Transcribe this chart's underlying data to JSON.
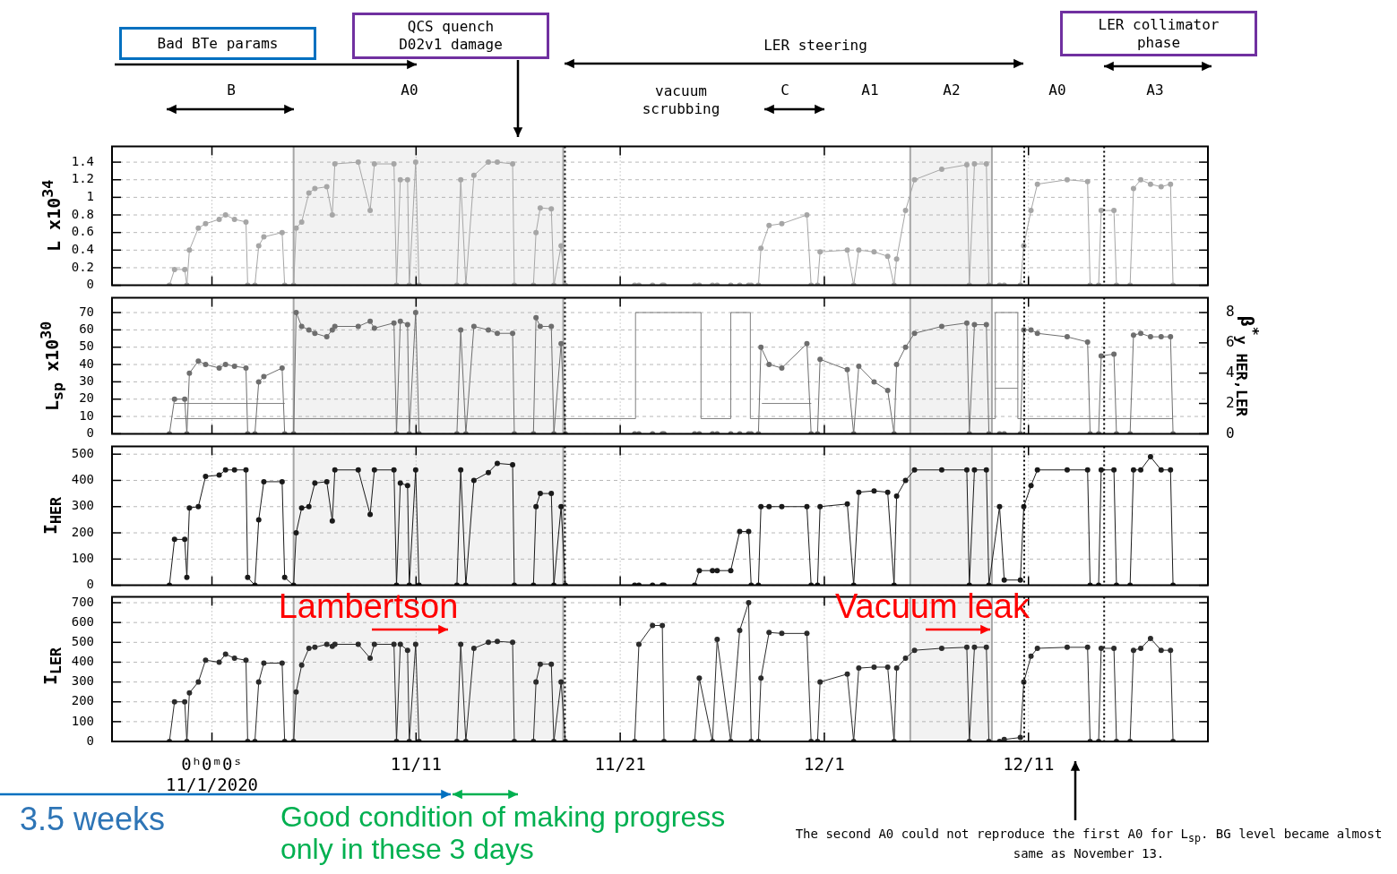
{
  "chart_data": [
    {
      "type": "line",
      "ylabel": "L x10$^{34}$",
      "x": [
        "2020-10-29T22:00",
        "2020-10-30T04:00",
        "2020-10-30T16:00",
        "2020-10-30T18:30",
        "2020-10-30T21:30",
        "2020-10-31T08:00",
        "2020-10-31T16:30",
        "2020-11-01T08:30",
        "2020-11-01T16:00",
        "2020-11-02T02:30",
        "2020-11-02T16:00",
        "2020-11-02T18:00",
        "2020-11-03T02:30",
        "2020-11-03T07:00",
        "2020-11-03T13:00",
        "2020-11-04T10:30",
        "2020-11-04T13:30",
        "2020-11-05T00:00",
        "2020-11-05T03:00",
        "2020-11-05T09:30",
        "2020-11-05T18:00",
        "2020-11-06T01:00",
        "2020-11-06T15:00",
        "2020-11-06T21:30",
        "2020-11-07T00:30",
        "2020-11-08T04:00",
        "2020-11-08T18:00",
        "2020-11-08T23:00",
        "2020-11-09T22:00",
        "2020-11-10T01:00",
        "2020-11-10T05:30",
        "2020-11-10T14:00",
        "2020-11-10T16:00",
        "2020-11-10T23:30",
        "2020-11-11T03:30",
        "2020-11-13T00:00",
        "2020-11-13T04:30",
        "2020-11-13T10:30",
        "2020-11-13T20:00",
        "2020-11-14T13:00",
        "2020-11-14T23:30",
        "2020-11-15T17:30",
        "2020-11-15T19:30",
        "2020-11-16T18:00",
        "2020-11-16T21:00",
        "2020-11-17T02:00",
        "2020-11-17T15:00",
        "2020-11-17T18:00",
        "2020-11-18T02:30",
        "2020-11-18T07:30",
        "2020-11-21T17:00",
        "2020-11-21T22:00",
        "2020-11-22T14:00",
        "2020-11-23T01:30",
        "2020-11-23T03:30",
        "2020-11-24T15:30",
        "2020-11-24T21:00",
        "2020-11-25T12:30",
        "2020-11-25T18:00",
        "2020-11-26T10:00",
        "2020-11-26T20:30",
        "2020-11-27T07:00",
        "2020-11-27T10:00",
        "2020-11-27T18:30",
        "2020-11-27T21:30",
        "2020-11-28T07:00",
        "2020-11-28T22:00",
        "2020-11-30T03:30",
        "2020-11-30T08:30",
        "2020-11-30T16:00",
        "2020-11-30T19:00",
        "2020-12-02T03:00",
        "2020-12-02T10:30",
        "2020-12-02T16:30",
        "2020-12-03T10:30",
        "2020-12-04T02:30",
        "2020-12-04T10:00",
        "2020-12-04T13:00",
        "2020-12-04T23:30",
        "2020-12-05T10:00",
        "2020-12-06T18:00",
        "2020-12-07T23:30",
        "2020-12-08T02:30",
        "2020-12-08T08:30",
        "2020-12-08T22:30",
        "2020-12-09T01:30",
        "2020-12-09T14:00",
        "2020-12-09T19:30",
        "2020-12-10T14:30",
        "2020-12-10T18:30",
        "2020-12-11T03:00",
        "2020-12-11T10:30",
        "2020-12-12T21:30",
        "2020-12-13T21:30",
        "2020-12-14T00:30",
        "2020-12-14T10:30",
        "2020-12-14T13:30",
        "2020-12-15T04:30",
        "2020-12-15T07:30",
        "2020-12-15T23:30",
        "2020-12-16T03:30",
        "2020-12-16T12:00",
        "2020-12-16T23:30",
        "2020-12-17T12:00",
        "2020-12-17T23:00",
        "2020-12-18T02:00"
      ],
      "series": [
        {
          "color": "#a6a6a6",
          "values": [
            0,
            0.18,
            0.18,
            0,
            0.4,
            0.65,
            0.7,
            0.75,
            0.8,
            0.75,
            0.72,
            0,
            0,
            0.45,
            0.55,
            0.6,
            0,
            0,
            0.65,
            0.72,
            1.05,
            1.1,
            1.12,
            0.8,
            1.38,
            1.4,
            0.85,
            1.38,
            1.38,
            0,
            1.2,
            1.2,
            0,
            1.4,
            0,
            0,
            1.2,
            0,
            1.25,
            1.4,
            1.4,
            1.38,
            0,
            0,
            0.6,
            0.88,
            0.87,
            0,
            0.45,
            0,
            0,
            0,
            0,
            0,
            0,
            0,
            0,
            0,
            0,
            0,
            0,
            0,
            0,
            0,
            0.42,
            0.68,
            0.7,
            0.8,
            0,
            0,
            0.38,
            0.4,
            0,
            0.4,
            0.38,
            0.33,
            0,
            0.3,
            0.85,
            1.2,
            1.32,
            1.37,
            0,
            1.38,
            1.38,
            0,
            0,
            0,
            0,
            0.45,
            0.85,
            1.15,
            1.2,
            1.18,
            0,
            0,
            0.85,
            0.85,
            0,
            0,
            1.1,
            1.2,
            1.15,
            1.12,
            1.15,
            0
          ]
        }
      ],
      "xlim": [
        "2020-10-27T02:30",
        "2020-12-19T19:00"
      ],
      "xticks": [
        {
          "value": "2020-11-01",
          "label": null
        },
        {
          "value": "2020-11-11",
          "label": null
        },
        {
          "value": "2020-11-21",
          "label": null
        },
        {
          "value": "2020-12-01",
          "label": null
        },
        {
          "value": "2020-12-11",
          "label": null
        }
      ],
      "ylim": [
        0,
        1.58
      ],
      "yticks": [
        0,
        0.2,
        0.4,
        0.6,
        0.8,
        1,
        1.2,
        1.4
      ],
      "grid": true,
      "marker": "circle",
      "tick_labels": "y",
      "ref_lines": [
        {
          "axis": "x",
          "value": "2020-11-18T07:00",
          "line_style": "dotted"
        },
        {
          "axis": "x",
          "value": "2020-12-10T19:00",
          "line_style": "dotted"
        },
        {
          "axis": "x",
          "value": "2020-12-14T17:00",
          "line_style": "dotted"
        }
      ],
      "bands": [
        {
          "axis": "x",
          "from": "2020-11-05",
          "to": "2020-11-18T05:00",
          "color": "#a6a6a6"
        },
        {
          "axis": "x",
          "from": "2020-12-05T05:00",
          "to": "2020-12-09T05:00",
          "color": "#a6a6a6"
        }
      ],
      "annotations": [
        "Bad BTe params",
        "QCS quench D02v1 damage",
        "LER steering",
        "LER collimator phase",
        "B",
        "A0",
        "vacuum scrubbing",
        "C",
        "A1",
        "A2",
        "A0",
        "A3"
      ]
    },
    {
      "type": "line",
      "ylabel": "L$_{sp}$ x10$^{30}$",
      "y2label": "β$^{*}$$_{y HER,LER}$",
      "x": [
        "2020-10-29T22:00",
        "2020-10-30T04:00",
        "2020-10-30T16:00",
        "2020-10-30T18:30",
        "2020-10-30T21:30",
        "2020-10-31T08:00",
        "2020-10-31T16:30",
        "2020-11-01T08:30",
        "2020-11-01T16:00",
        "2020-11-02T02:30",
        "2020-11-02T16:00",
        "2020-11-02T18:00",
        "2020-11-03T02:30",
        "2020-11-03T07:00",
        "2020-11-03T13:00",
        "2020-11-04T10:30",
        "2020-11-04T13:30",
        "2020-11-05T00:00",
        "2020-11-05T03:00",
        "2020-11-05T09:30",
        "2020-11-05T18:00",
        "2020-11-06T01:00",
        "2020-11-06T15:00",
        "2020-11-06T21:30",
        "2020-11-07T00:30",
        "2020-11-08T04:00",
        "2020-11-08T18:00",
        "2020-11-08T23:00",
        "2020-11-09T22:00",
        "2020-11-10T01:00",
        "2020-11-10T05:30",
        "2020-11-10T14:00",
        "2020-11-10T16:00",
        "2020-11-10T23:30",
        "2020-11-11T03:30",
        "2020-11-13T00:00",
        "2020-11-13T04:30",
        "2020-11-13T10:30",
        "2020-11-13T20:00",
        "2020-11-14T13:00",
        "2020-11-14T23:30",
        "2020-11-15T17:30",
        "2020-11-15T19:30",
        "2020-11-16T18:00",
        "2020-11-16T21:00",
        "2020-11-17T02:00",
        "2020-11-17T15:00",
        "2020-11-17T18:00",
        "2020-11-18T02:30",
        "2020-11-18T07:30",
        "2020-11-21T17:00",
        "2020-11-21T22:00",
        "2020-11-22T14:00",
        "2020-11-23T01:30",
        "2020-11-23T03:30",
        "2020-11-24T15:30",
        "2020-11-24T21:00",
        "2020-11-25T12:30",
        "2020-11-25T18:00",
        "2020-11-26T10:00",
        "2020-11-26T20:30",
        "2020-11-27T07:00",
        "2020-11-27T10:00",
        "2020-11-27T18:30",
        "2020-11-27T21:30",
        "2020-11-28T07:00",
        "2020-11-28T22:00",
        "2020-11-30T03:30",
        "2020-11-30T08:30",
        "2020-11-30T16:00",
        "2020-11-30T19:00",
        "2020-12-02T03:00",
        "2020-12-02T10:30",
        "2020-12-02T16:30",
        "2020-12-03T10:30",
        "2020-12-04T02:30",
        "2020-12-04T10:00",
        "2020-12-04T13:00",
        "2020-12-04T23:30",
        "2020-12-05T10:00",
        "2020-12-06T18:00",
        "2020-12-07T23:30",
        "2020-12-08T02:30",
        "2020-12-08T08:30",
        "2020-12-08T22:30",
        "2020-12-09T01:30",
        "2020-12-09T14:00",
        "2020-12-09T19:30",
        "2020-12-10T14:30",
        "2020-12-10T18:30",
        "2020-12-11T03:00",
        "2020-12-11T10:30",
        "2020-12-12T21:30",
        "2020-12-13T21:30",
        "2020-12-14T00:30",
        "2020-12-14T10:30",
        "2020-12-14T13:30",
        "2020-12-15T04:30",
        "2020-12-15T07:30",
        "2020-12-15T23:30",
        "2020-12-16T03:30",
        "2020-12-16T12:00",
        "2020-12-16T23:30",
        "2020-12-17T12:00",
        "2020-12-17T23:00",
        "2020-12-18T02:00"
      ],
      "series": [
        {
          "color": "#6e6e6e",
          "values": [
            0,
            20,
            20,
            0,
            35,
            42,
            40,
            38,
            40,
            39,
            38,
            0,
            0,
            30,
            33,
            38,
            0,
            0,
            70,
            62,
            60,
            58,
            56,
            60,
            62,
            62,
            65,
            61,
            64,
            0,
            65,
            63,
            0,
            70,
            0,
            0,
            60,
            0,
            62,
            60,
            58,
            58,
            0,
            0,
            67,
            62,
            62,
            0,
            52,
            0,
            0,
            0,
            0,
            0,
            0,
            0,
            0,
            0,
            0,
            0,
            0,
            0,
            0,
            0,
            50,
            40,
            38,
            52,
            0,
            0,
            43,
            37,
            0,
            39,
            30,
            25,
            0,
            40,
            50,
            58,
            62,
            64,
            0,
            63,
            63,
            0,
            0,
            0,
            0,
            60,
            60,
            58,
            56,
            53,
            0,
            0,
            45,
            46,
            0,
            0,
            57,
            58,
            56,
            56,
            56,
            0
          ]
        },
        {
          "type": "step",
          "axis": "y2",
          "marker": "none",
          "color": "#808080",
          "x": [
            "2020-10-30T04:00",
            "2020-11-21T18:00",
            "2020-11-24T23:00",
            "2020-11-26T10:00",
            "2020-11-27T09:00",
            "2020-12-09T09:00",
            "2020-12-10T11:30",
            "2020-12-18T02:00"
          ],
          "values": [
            1,
            8,
            1,
            8,
            1,
            8,
            1,
            1
          ]
        },
        {
          "type": "step",
          "axis": "y2",
          "marker": "none",
          "color": "#808080",
          "x": [
            "2020-10-30T04:00",
            "2020-11-04T13:30",
            "2020-11-04T13:45",
            "2020-11-27T23:00",
            "2020-11-30T08:30",
            "2020-11-30T08:45",
            "2020-12-09T09:00",
            "2020-12-10T11:30"
          ],
          "values": [
            2,
            2,
            null,
            2,
            2,
            null,
            3,
            3
          ]
        }
      ],
      "xlim": [
        "2020-10-27T02:30",
        "2020-12-19T19:00"
      ],
      "xticks": [
        {
          "value": "2020-11-01",
          "label": null
        },
        {
          "value": "2020-11-11",
          "label": null
        },
        {
          "value": "2020-11-21",
          "label": null
        },
        {
          "value": "2020-12-01",
          "label": null
        },
        {
          "value": "2020-12-11",
          "label": null
        }
      ],
      "ylim": [
        0,
        78.5
      ],
      "yticks": [
        0,
        10,
        20,
        30,
        40,
        50,
        60,
        70
      ],
      "y2lim": [
        0,
        8.97
      ],
      "y2ticks": [
        0,
        2,
        4,
        6,
        8
      ],
      "grid": true,
      "marker": "circle",
      "tick_labels": "y",
      "ref_lines": [
        {
          "axis": "x",
          "value": "2020-11-18T07:00",
          "line_style": "dotted"
        },
        {
          "axis": "x",
          "value": "2020-12-10T19:00",
          "line_style": "dotted"
        },
        {
          "axis": "x",
          "value": "2020-12-14T17:00",
          "line_style": "dotted"
        }
      ],
      "bands": [
        {
          "axis": "x",
          "from": "2020-11-05",
          "to": "2020-11-18T05:00",
          "color": "#a6a6a6"
        },
        {
          "axis": "x",
          "from": "2020-12-05T05:00",
          "to": "2020-12-09T05:00",
          "color": "#a6a6a6"
        }
      ]
    },
    {
      "type": "line",
      "ylabel": "I$_{HER}$",
      "x": [
        "2020-10-29T22:00",
        "2020-10-30T04:00",
        "2020-10-30T16:00",
        "2020-10-30T18:30",
        "2020-10-30T21:30",
        "2020-10-31T08:00",
        "2020-10-31T16:30",
        "2020-11-01T08:30",
        "2020-11-01T16:00",
        "2020-11-02T02:30",
        "2020-11-02T16:00",
        "2020-11-02T18:00",
        "2020-11-03T02:30",
        "2020-11-03T07:00",
        "2020-11-03T13:00",
        "2020-11-04T10:30",
        "2020-11-04T13:30",
        "2020-11-05T00:00",
        "2020-11-05T03:00",
        "2020-11-05T09:30",
        "2020-11-05T18:00",
        "2020-11-06T01:00",
        "2020-11-06T15:00",
        "2020-11-06T21:30",
        "2020-11-07T00:30",
        "2020-11-08T04:00",
        "2020-11-08T18:00",
        "2020-11-08T23:00",
        "2020-11-09T22:00",
        "2020-11-10T01:00",
        "2020-11-10T05:30",
        "2020-11-10T14:00",
        "2020-11-10T16:00",
        "2020-11-10T23:30",
        "2020-11-11T03:30",
        "2020-11-13T00:00",
        "2020-11-13T04:30",
        "2020-11-13T10:30",
        "2020-11-13T20:00",
        "2020-11-14T13:00",
        "2020-11-14T23:30",
        "2020-11-15T17:30",
        "2020-11-15T19:30",
        "2020-11-16T18:00",
        "2020-11-16T21:00",
        "2020-11-17T02:00",
        "2020-11-17T15:00",
        "2020-11-17T18:00",
        "2020-11-18T02:30",
        "2020-11-18T07:30",
        "2020-11-21T17:00",
        "2020-11-21T22:00",
        "2020-11-22T14:00",
        "2020-11-23T01:30",
        "2020-11-23T03:30",
        "2020-11-24T15:30",
        "2020-11-24T21:00",
        "2020-11-25T12:30",
        "2020-11-25T18:00",
        "2020-11-26T10:00",
        "2020-11-26T20:30",
        "2020-11-27T07:00",
        "2020-11-27T10:00",
        "2020-11-27T18:30",
        "2020-11-27T21:30",
        "2020-11-28T07:00",
        "2020-11-28T22:00",
        "2020-11-30T03:30",
        "2020-11-30T08:30",
        "2020-11-30T16:00",
        "2020-11-30T19:00",
        "2020-12-02T03:00",
        "2020-12-02T10:30",
        "2020-12-02T16:30",
        "2020-12-03T10:30",
        "2020-12-04T02:30",
        "2020-12-04T10:00",
        "2020-12-04T13:00",
        "2020-12-04T23:30",
        "2020-12-05T10:00",
        "2020-12-06T18:00",
        "2020-12-07T23:30",
        "2020-12-08T02:30",
        "2020-12-08T08:30",
        "2020-12-08T22:30",
        "2020-12-09T01:30",
        "2020-12-09T14:00",
        "2020-12-09T19:30",
        "2020-12-10T14:30",
        "2020-12-10T18:30",
        "2020-12-11T03:00",
        "2020-12-11T10:30",
        "2020-12-12T21:30",
        "2020-12-13T21:30",
        "2020-12-14T00:30",
        "2020-12-14T10:30",
        "2020-12-14T13:30",
        "2020-12-15T04:30",
        "2020-12-15T07:30",
        "2020-12-15T23:30",
        "2020-12-16T03:30",
        "2020-12-16T12:00",
        "2020-12-16T23:30",
        "2020-12-17T12:00",
        "2020-12-17T23:00",
        "2020-12-18T02:00"
      ],
      "series": [
        {
          "color": "#1a1a1a",
          "values": [
            0,
            175,
            175,
            30,
            295,
            300,
            415,
            420,
            440,
            440,
            440,
            30,
            0,
            250,
            395,
            395,
            30,
            0,
            200,
            295,
            300,
            390,
            395,
            245,
            440,
            440,
            270,
            440,
            440,
            0,
            390,
            380,
            0,
            440,
            0,
            0,
            440,
            0,
            400,
            430,
            465,
            460,
            0,
            0,
            300,
            350,
            350,
            0,
            300,
            0,
            0,
            0,
            0,
            0,
            0,
            0,
            56,
            56,
            56,
            56,
            205,
            205,
            0,
            0,
            300,
            300,
            300,
            300,
            0,
            0,
            300,
            310,
            0,
            355,
            360,
            355,
            0,
            340,
            400,
            440,
            440,
            440,
            0,
            440,
            440,
            0,
            300,
            20,
            20,
            300,
            380,
            440,
            440,
            440,
            0,
            0,
            440,
            440,
            0,
            0,
            440,
            440,
            490,
            440,
            440,
            0
          ]
        }
      ],
      "xlim": [
        "2020-10-27T02:30",
        "2020-12-19T19:00"
      ],
      "xticks": [
        {
          "value": "2020-11-01",
          "label": null
        },
        {
          "value": "2020-11-11",
          "label": null
        },
        {
          "value": "2020-11-21",
          "label": null
        },
        {
          "value": "2020-12-01",
          "label": null
        },
        {
          "value": "2020-12-11",
          "label": null
        }
      ],
      "ylim": [
        0,
        530
      ],
      "yticks": [
        0,
        100,
        200,
        300,
        400,
        500
      ],
      "grid": true,
      "marker": "circle",
      "tick_labels": "y",
      "ref_lines": [
        {
          "axis": "x",
          "value": "2020-11-18T07:00",
          "line_style": "dotted"
        },
        {
          "axis": "x",
          "value": "2020-12-10T19:00",
          "line_style": "dotted"
        },
        {
          "axis": "x",
          "value": "2020-12-14T17:00",
          "line_style": "dotted"
        }
      ],
      "bands": [
        {
          "axis": "x",
          "from": "2020-11-05",
          "to": "2020-11-18T05:00",
          "color": "#a6a6a6"
        },
        {
          "axis": "x",
          "from": "2020-12-05T05:00",
          "to": "2020-12-09T05:00",
          "color": "#a6a6a6"
        }
      ]
    },
    {
      "type": "line",
      "ylabel": "I$_{LER}$",
      "x": [
        "2020-10-29T22:00",
        "2020-10-30T04:00",
        "2020-10-30T16:00",
        "2020-10-30T18:30",
        "2020-10-30T21:30",
        "2020-10-31T08:00",
        "2020-10-31T16:30",
        "2020-11-01T08:30",
        "2020-11-01T16:00",
        "2020-11-02T02:30",
        "2020-11-02T16:00",
        "2020-11-02T18:00",
        "2020-11-03T02:30",
        "2020-11-03T07:00",
        "2020-11-03T13:00",
        "2020-11-04T10:30",
        "2020-11-04T13:30",
        "2020-11-05T00:00",
        "2020-11-05T03:00",
        "2020-11-05T09:30",
        "2020-11-05T18:00",
        "2020-11-06T01:00",
        "2020-11-06T15:00",
        "2020-11-06T21:30",
        "2020-11-07T00:30",
        "2020-11-08T04:00",
        "2020-11-08T18:00",
        "2020-11-08T23:00",
        "2020-11-09T22:00",
        "2020-11-10T01:00",
        "2020-11-10T05:30",
        "2020-11-10T14:00",
        "2020-11-10T16:00",
        "2020-11-10T23:30",
        "2020-11-11T03:30",
        "2020-11-13T00:00",
        "2020-11-13T04:30",
        "2020-11-13T10:30",
        "2020-11-13T20:00",
        "2020-11-14T13:00",
        "2020-11-14T23:30",
        "2020-11-15T17:30",
        "2020-11-15T19:30",
        "2020-11-16T18:00",
        "2020-11-16T21:00",
        "2020-11-17T02:00",
        "2020-11-17T15:00",
        "2020-11-17T18:00",
        "2020-11-18T02:30",
        "2020-11-18T07:30",
        "2020-11-21T17:00",
        "2020-11-21T22:00",
        "2020-11-22T14:00",
        "2020-11-23T01:30",
        "2020-11-23T03:30",
        "2020-11-24T15:30",
        "2020-11-24T21:00",
        "2020-11-25T12:30",
        "2020-11-25T18:00",
        "2020-11-26T10:00",
        "2020-11-26T20:30",
        "2020-11-27T07:00",
        "2020-11-27T10:00",
        "2020-11-27T18:30",
        "2020-11-27T21:30",
        "2020-11-28T07:00",
        "2020-11-28T22:00",
        "2020-11-30T03:30",
        "2020-11-30T08:30",
        "2020-11-30T16:00",
        "2020-11-30T19:00",
        "2020-12-02T03:00",
        "2020-12-02T10:30",
        "2020-12-02T16:30",
        "2020-12-03T10:30",
        "2020-12-04T02:30",
        "2020-12-04T10:00",
        "2020-12-04T13:00",
        "2020-12-04T23:30",
        "2020-12-05T10:00",
        "2020-12-06T18:00",
        "2020-12-07T23:30",
        "2020-12-08T02:30",
        "2020-12-08T08:30",
        "2020-12-08T22:30",
        "2020-12-09T01:30",
        "2020-12-09T14:00",
        "2020-12-09T19:30",
        "2020-12-10T14:30",
        "2020-12-10T18:30",
        "2020-12-11T03:00",
        "2020-12-11T10:30",
        "2020-12-12T21:30",
        "2020-12-13T21:30",
        "2020-12-14T00:30",
        "2020-12-14T10:30",
        "2020-12-14T13:30",
        "2020-12-15T04:30",
        "2020-12-15T07:30",
        "2020-12-15T23:30",
        "2020-12-16T03:30",
        "2020-12-16T12:00",
        "2020-12-16T23:30",
        "2020-12-17T12:00",
        "2020-12-17T23:00",
        "2020-12-18T02:00"
      ],
      "series": [
        {
          "color": "#2b2b2b",
          "values": [
            0,
            200,
            200,
            0,
            245,
            300,
            410,
            400,
            440,
            420,
            410,
            0,
            0,
            300,
            395,
            395,
            0,
            0,
            250,
            385,
            470,
            475,
            490,
            480,
            490,
            490,
            420,
            490,
            490,
            0,
            490,
            460,
            0,
            490,
            0,
            0,
            490,
            0,
            470,
            500,
            505,
            500,
            0,
            0,
            300,
            390,
            390,
            0,
            300,
            0,
            0,
            490,
            585,
            585,
            0,
            0,
            320,
            0,
            515,
            0,
            560,
            700,
            0,
            0,
            320,
            550,
            545,
            545,
            0,
            0,
            300,
            340,
            0,
            370,
            375,
            375,
            0,
            370,
            420,
            460,
            470,
            475,
            0,
            475,
            475,
            0,
            0,
            10,
            20,
            300,
            430,
            470,
            475,
            475,
            0,
            0,
            470,
            470,
            0,
            0,
            460,
            470,
            520,
            460,
            460,
            0
          ]
        }
      ],
      "xlim": [
        "2020-10-27T02:30",
        "2020-12-19T19:00"
      ],
      "xticks": [
        {
          "value": "2020-11-01",
          "label": "0ʰ0ᵐ0ˢ\n11/1/2020"
        },
        {
          "value": "2020-11-11",
          "label": "11/11"
        },
        {
          "value": "2020-11-21",
          "label": "11/21"
        },
        {
          "value": "2020-12-01",
          "label": "12/1"
        },
        {
          "value": "2020-12-11",
          "label": "12/11"
        }
      ],
      "ylim": [
        0,
        730
      ],
      "yticks": [
        0,
        100,
        200,
        300,
        400,
        500,
        600,
        700
      ],
      "grid": true,
      "marker": "circle",
      "ref_lines": [
        {
          "axis": "x",
          "value": "2020-11-18T07:00",
          "line_style": "dotted"
        },
        {
          "axis": "x",
          "value": "2020-12-10T19:00",
          "line_style": "dotted"
        },
        {
          "axis": "x",
          "value": "2020-12-14T17:00",
          "line_style": "dotted"
        }
      ],
      "bands": [
        {
          "axis": "x",
          "from": "2020-11-05",
          "to": "2020-11-18T05:00",
          "color": "#a6a6a6"
        },
        {
          "axis": "x",
          "from": "2020-12-05T05:00",
          "to": "2020-12-09T05:00",
          "color": "#a6a6a6"
        }
      ],
      "annotations": [
        "Lambertson",
        "Vacuum leak",
        "3.5 weeks",
        "Good condition of making progress only in these 3 days",
        "The second A0 could not reproduce the first A0 for L$_{sp}$. BG level became almost same as November 13."
      ]
    }
  ]
}
